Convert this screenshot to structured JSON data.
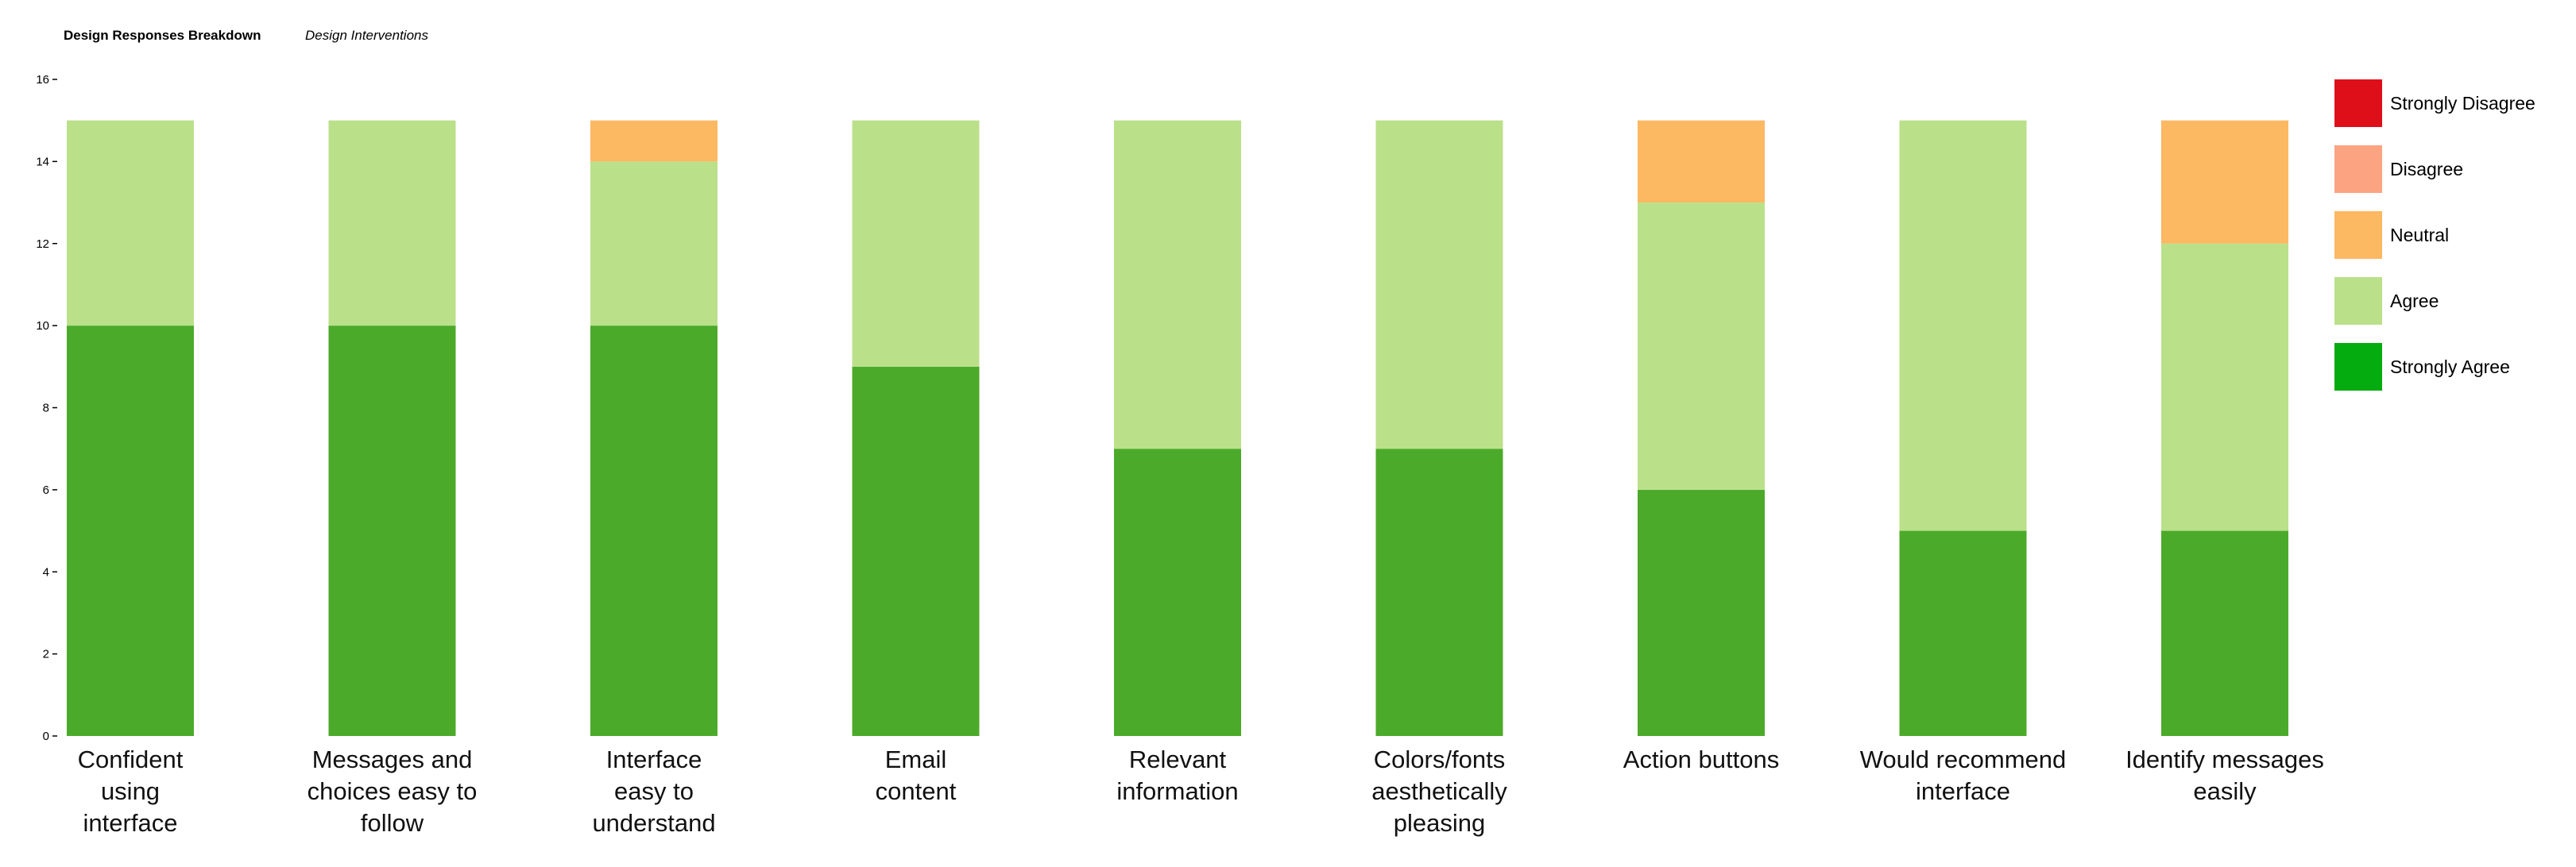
{
  "chart_data": {
    "type": "bar",
    "stacked": true,
    "title": "Design Responses Breakdown",
    "subtitle": "Design Interventions",
    "ylim": [
      0,
      16
    ],
    "yticks": [
      0,
      2,
      4,
      6,
      8,
      10,
      12,
      14,
      16
    ],
    "grid": false,
    "legend_position": "right",
    "categories": [
      [
        "Confident",
        "using",
        "interface"
      ],
      [
        "Messages and",
        "choices easy to",
        "follow"
      ],
      [
        "Interface",
        "easy to",
        "understand"
      ],
      [
        "Email",
        "content"
      ],
      [
        "Relevant",
        "information"
      ],
      [
        "Colors/fonts",
        "aesthetically",
        "pleasing"
      ],
      [
        "Action buttons"
      ],
      [
        "Would recommend",
        "interface"
      ],
      [
        "Identify messages",
        "easily"
      ]
    ],
    "series": [
      {
        "name": "Strongly Agree",
        "color": "#4caa2a",
        "values": [
          10,
          10,
          10,
          9,
          7,
          7,
          6,
          5,
          5
        ]
      },
      {
        "name": "Agree",
        "color": "#bbe08a",
        "values": [
          5,
          5,
          4,
          6,
          8,
          8,
          7,
          10,
          7
        ]
      },
      {
        "name": "Neutral",
        "color": "#fdb862",
        "values": [
          0,
          0,
          1,
          0,
          0,
          0,
          2,
          0,
          3
        ]
      },
      {
        "name": "Disagree",
        "color": "#fca382",
        "values": [
          0,
          0,
          0,
          0,
          0,
          0,
          0,
          0,
          0
        ]
      },
      {
        "name": "Strongly Disagree",
        "color": "#df0f1a",
        "values": [
          0,
          0,
          0,
          0,
          0,
          0,
          0,
          0,
          0
        ]
      }
    ],
    "legend": [
      {
        "name": "Strongly Disagree",
        "color": "#df0f1a"
      },
      {
        "name": "Disagree",
        "color": "#fca382"
      },
      {
        "name": "Neutral",
        "color": "#fdb862"
      },
      {
        "name": "Agree",
        "color": "#bbe08a"
      },
      {
        "name": "Strongly Agree",
        "color": "#04ac0f"
      }
    ]
  }
}
